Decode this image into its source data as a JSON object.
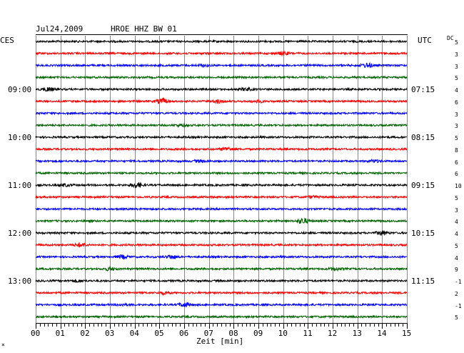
{
  "header": {
    "date": "Jul24,2009",
    "station": "HROE HHZ BW 01",
    "left_zone": "CES",
    "right_zone": "UTC",
    "dc_label": "DC"
  },
  "chart_data": {
    "type": "line",
    "title": "Jul24,2009   HROE HHZ BW 01",
    "xlabel": "Zeit [min]",
    "x_ticks": [
      "00",
      "01",
      "02",
      "03",
      "04",
      "05",
      "06",
      "07",
      "08",
      "09",
      "10",
      "11",
      "12",
      "13",
      "14",
      "15"
    ],
    "xlim": [
      0,
      15
    ],
    "grid": true,
    "trace_colors": [
      "#000000",
      "#ff0000",
      "#0000ff",
      "#006400"
    ],
    "trace_count": 24,
    "left_time_labels": [
      {
        "trace": 4,
        "label": "09:00"
      },
      {
        "trace": 8,
        "label": "10:00"
      },
      {
        "trace": 12,
        "label": "11:00"
      },
      {
        "trace": 16,
        "label": "12:00"
      },
      {
        "trace": 20,
        "label": "13:00"
      }
    ],
    "right_time_labels": [
      {
        "trace": 4,
        "label": "07:15"
      },
      {
        "trace": 8,
        "label": "08:15"
      },
      {
        "trace": 12,
        "label": "09:15"
      },
      {
        "trace": 16,
        "label": "10:15"
      },
      {
        "trace": 20,
        "label": "11:15"
      }
    ],
    "dc_offsets": [
      "5",
      "3",
      "3",
      "5",
      "4",
      "6",
      "3",
      "3",
      "5",
      "8",
      "6",
      "6",
      "10",
      "5",
      "3",
      "4",
      "4",
      "5",
      "4",
      "9",
      "-1",
      "2",
      "-1",
      "5"
    ],
    "events": [
      {
        "trace": 1,
        "minute": 10.0,
        "amp": 2.2
      },
      {
        "trace": 2,
        "minute": 13.4,
        "amp": 2.6
      },
      {
        "trace": 2,
        "minute": 6.8,
        "amp": 1.3
      },
      {
        "trace": 4,
        "minute": 0.5,
        "amp": 2.4
      },
      {
        "trace": 4,
        "minute": 8.5,
        "amp": 1.6
      },
      {
        "trace": 5,
        "minute": 5.1,
        "amp": 3.2
      },
      {
        "trace": 5,
        "minute": 7.4,
        "amp": 2.0
      },
      {
        "trace": 5,
        "minute": 9.0,
        "amp": 1.3
      },
      {
        "trace": 7,
        "minute": 5.9,
        "amp": 1.4
      },
      {
        "trace": 9,
        "minute": 7.7,
        "amp": 2.0
      },
      {
        "trace": 10,
        "minute": 13.7,
        "amp": 1.5
      },
      {
        "trace": 10,
        "minute": 6.6,
        "amp": 1.3
      },
      {
        "trace": 12,
        "minute": 4.1,
        "amp": 3.2
      },
      {
        "trace": 12,
        "minute": 1.2,
        "amp": 1.4
      },
      {
        "trace": 13,
        "minute": 11.2,
        "amp": 1.3
      },
      {
        "trace": 15,
        "minute": 10.8,
        "amp": 3.4
      },
      {
        "trace": 16,
        "minute": 14.0,
        "amp": 2.6
      },
      {
        "trace": 17,
        "minute": 1.8,
        "amp": 2.4
      },
      {
        "trace": 18,
        "minute": 3.5,
        "amp": 2.2
      },
      {
        "trace": 18,
        "minute": 5.5,
        "amp": 2.4
      },
      {
        "trace": 19,
        "minute": 3.0,
        "amp": 2.0
      },
      {
        "trace": 19,
        "minute": 12.1,
        "amp": 1.8
      },
      {
        "trace": 20,
        "minute": 1.7,
        "amp": 1.4
      },
      {
        "trace": 21,
        "minute": 5.2,
        "amp": 1.6
      },
      {
        "trace": 22,
        "minute": 6.0,
        "amp": 2.6
      },
      {
        "trace": 22,
        "minute": 3.5,
        "amp": 1.3
      }
    ]
  },
  "footer": {
    "corner_mark": "×"
  }
}
